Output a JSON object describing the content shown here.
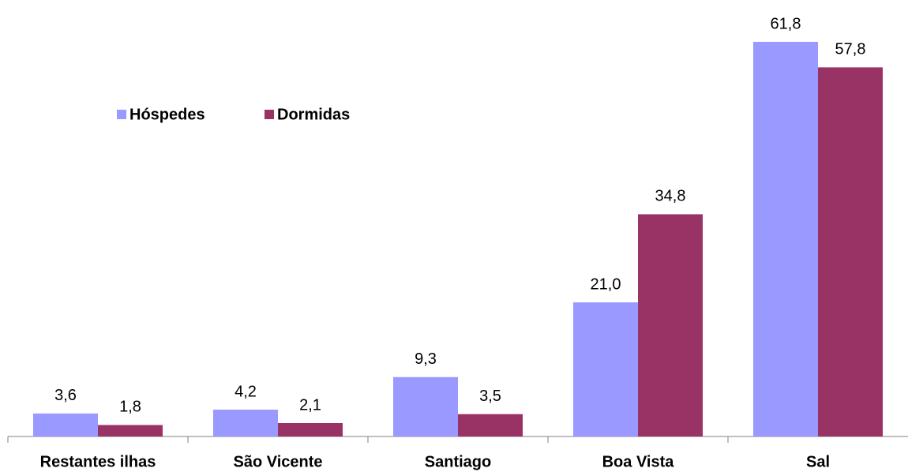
{
  "chart_data": {
    "type": "bar",
    "categories": [
      "Restantes ilhas",
      "São Vicente",
      "Santiago",
      "Boa Vista",
      "Sal"
    ],
    "series": [
      {
        "name": "Hóspedes",
        "color": "#9999ff",
        "values": [
          3.6,
          4.2,
          9.3,
          21.0,
          61.8
        ],
        "value_labels": [
          "3,6",
          "4,2",
          "9,3",
          "21,0",
          "61,8"
        ]
      },
      {
        "name": "Dormidas",
        "color": "#993366",
        "values": [
          1.8,
          2.1,
          3.5,
          34.8,
          57.8
        ],
        "value_labels": [
          "1,8",
          "2,1",
          "3,5",
          "34,8",
          "57,8"
        ]
      }
    ],
    "legend": "upper left"
  }
}
